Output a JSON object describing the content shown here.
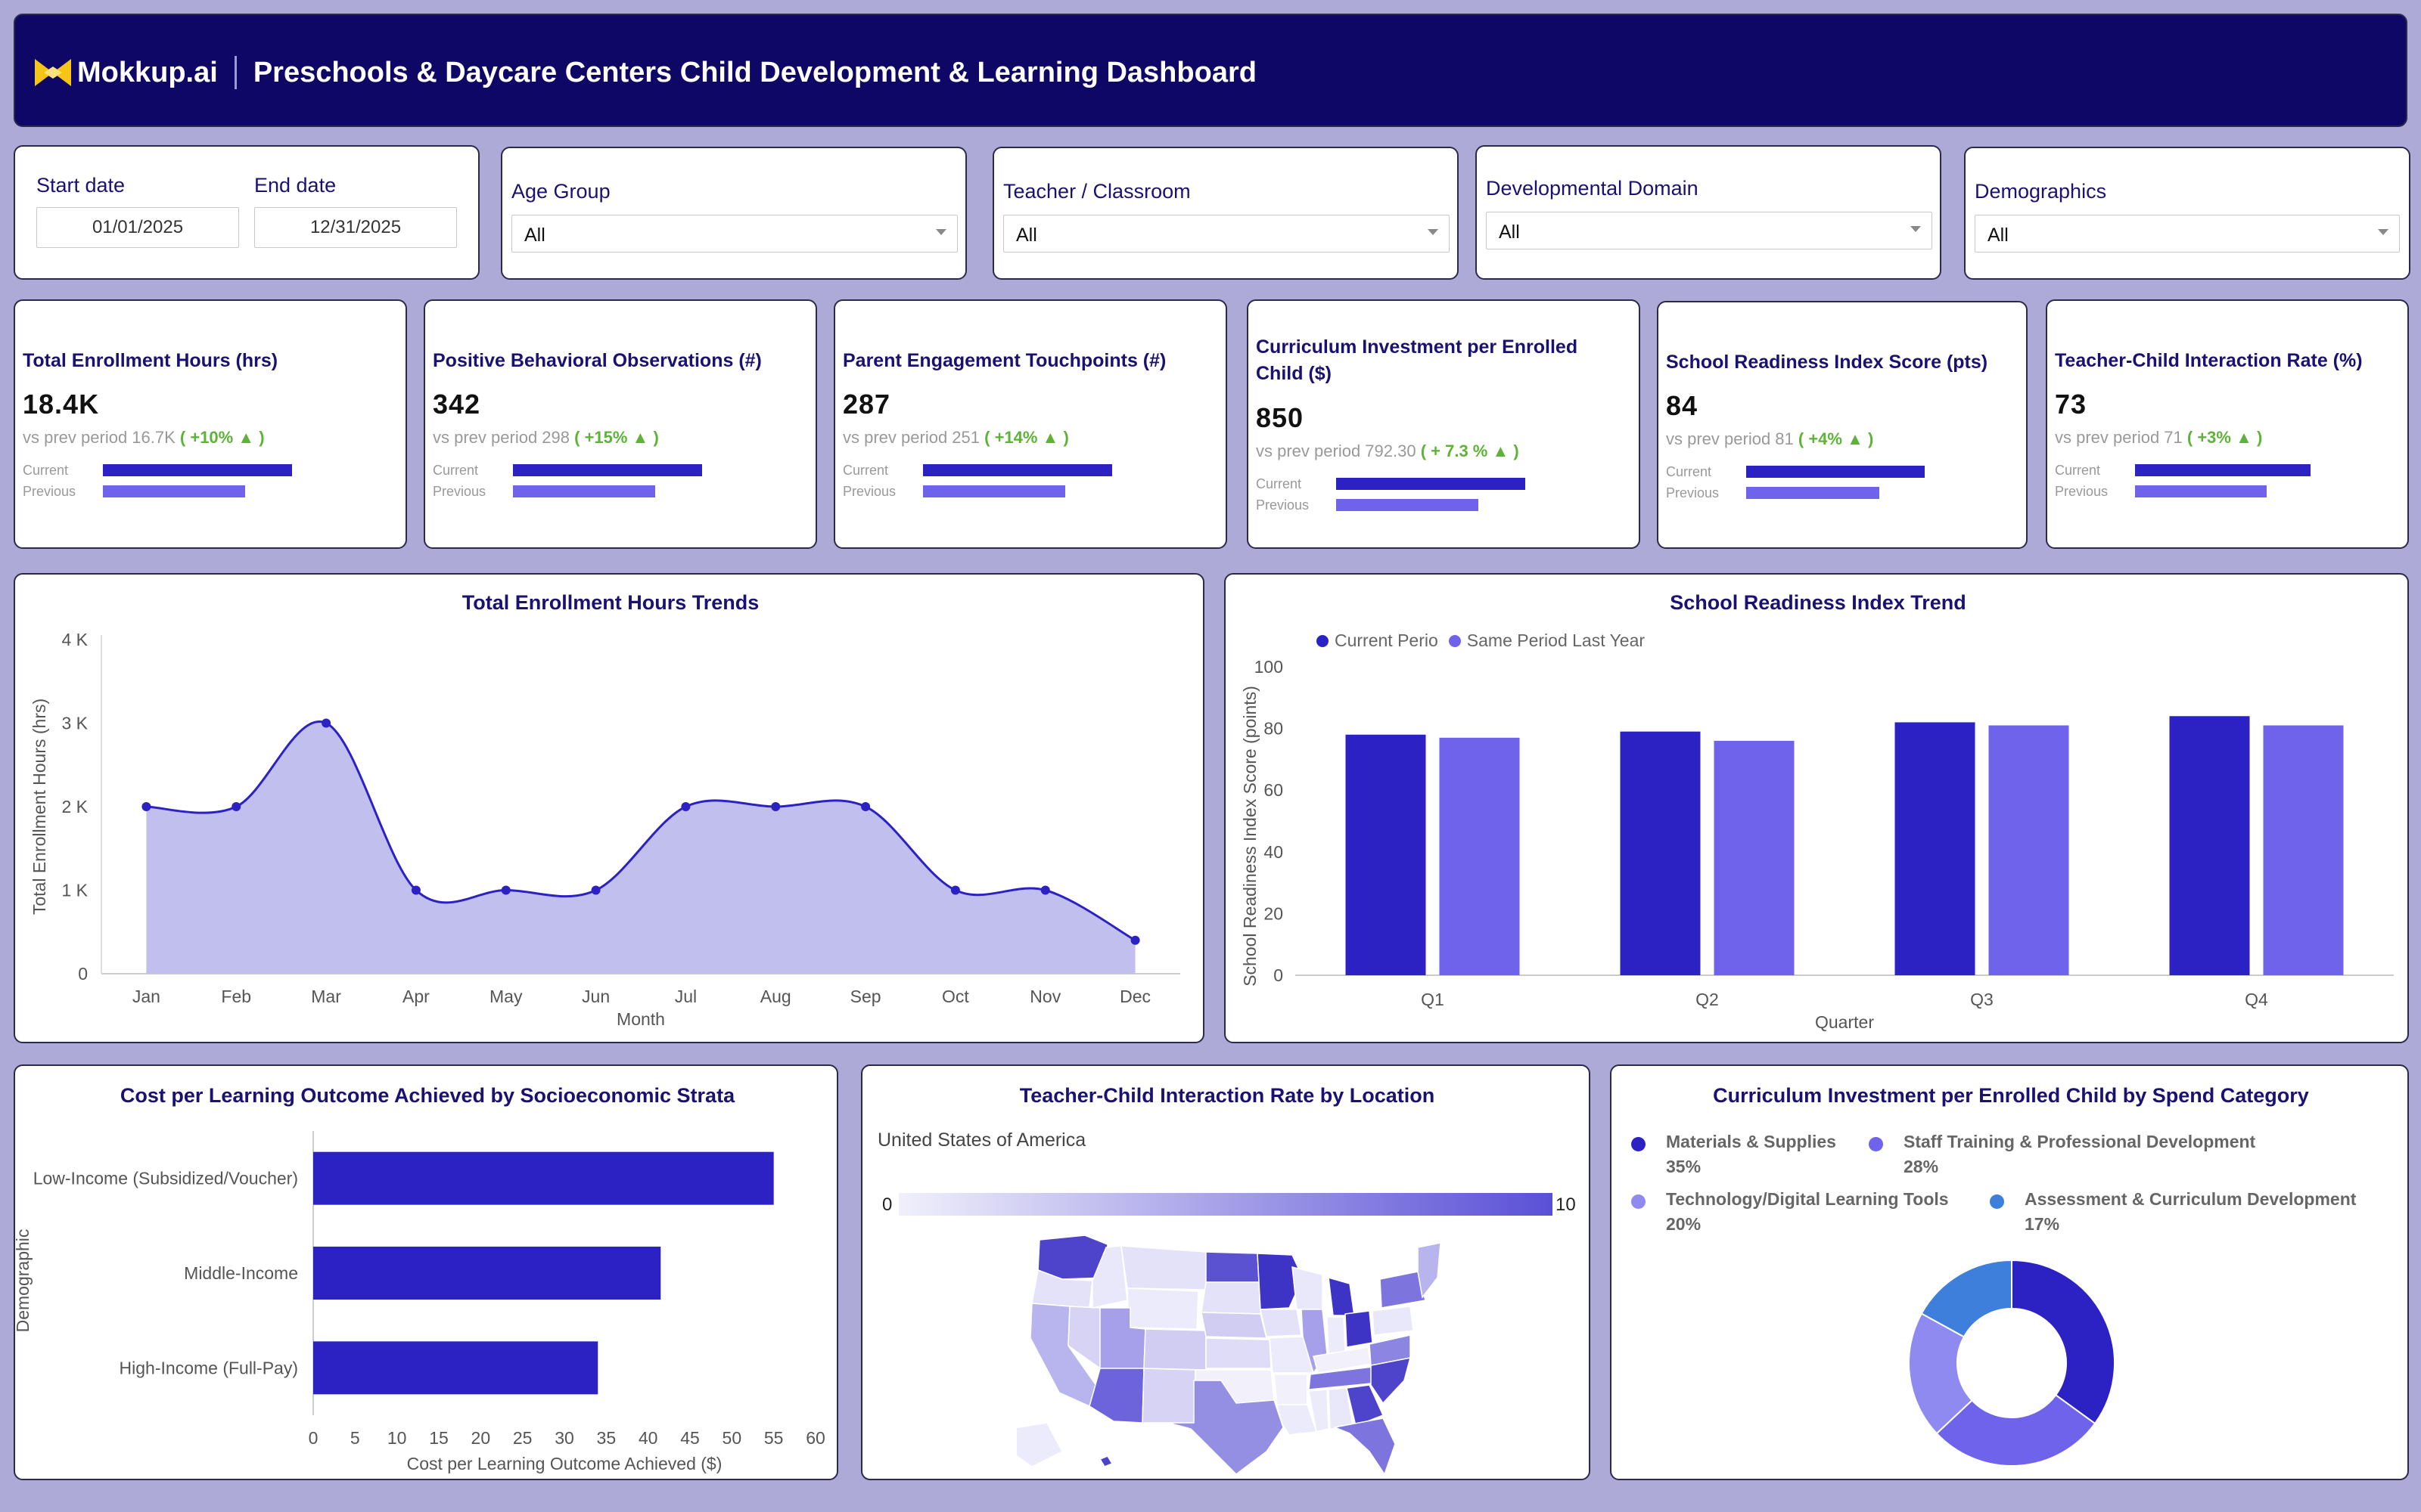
{
  "header": {
    "logo_text": "Mokkup.ai",
    "title": "Preschools & Daycare Centers Child Development & Learning Dashboard"
  },
  "filters": {
    "start_date_label": "Start date",
    "start_date_value": "01/01/2025",
    "end_date_label": "End date",
    "end_date_value": "12/31/2025",
    "age_group_label": "Age Group",
    "age_group_value": "All",
    "teacher_label": "Teacher / Classroom",
    "teacher_value": "All",
    "domain_label": "Developmental Domain",
    "domain_value": "All",
    "demographics_label": "Demographics",
    "demographics_value": "All"
  },
  "kpis": [
    {
      "title": "Total Enrollment Hours (hrs)",
      "value": "18.4K",
      "prev_text": "vs prev period 16.7K",
      "change": "( +10% ▲ )",
      "current_label": "Current",
      "previous_label": "Previous",
      "current_ratio": 1.0,
      "previous_ratio": 0.75
    },
    {
      "title": "Positive Behavioral Observations (#)",
      "value": "342",
      "prev_text": "vs prev period 298",
      "change": "( +15% ▲ )",
      "current_label": "Current",
      "previous_label": "Previous",
      "current_ratio": 1.0,
      "previous_ratio": 0.75
    },
    {
      "title": "Parent Engagement Touchpoints (#)",
      "value": "287",
      "prev_text": "vs prev period 251",
      "change": "( +14% ▲ )",
      "current_label": "Current",
      "previous_label": "Previous",
      "current_ratio": 1.0,
      "previous_ratio": 0.75
    },
    {
      "title": "Curriculum Investment per Enrolled Child ($)",
      "value": "850",
      "prev_text": "vs prev period 792.30",
      "change": "( + 7.3 % ▲ )",
      "current_label": "Current",
      "previous_label": "Previous",
      "current_ratio": 1.0,
      "previous_ratio": 0.75
    },
    {
      "title": "School Readiness Index Score (pts)",
      "value": "84",
      "prev_text": "vs prev period 81",
      "change": "( +4% ▲ )",
      "current_label": "Current",
      "previous_label": "Previous",
      "current_ratio": 1.0,
      "previous_ratio": 0.75
    },
    {
      "title": "Teacher-Child Interaction Rate (%)",
      "value": "73",
      "prev_text": "vs prev period 71",
      "change": "( +3% ▲ )",
      "current_label": "Current",
      "previous_label": "Previous",
      "current_ratio": 1.0,
      "previous_ratio": 0.75
    }
  ],
  "colors": {
    "dark": "#2c22c4",
    "mid": "#6e63ea",
    "light": "#8e8af0",
    "blue": "#3e7fdc",
    "area": "#c1bfee"
  },
  "map": {
    "title": "Teacher-Child Interaction Rate by Location",
    "region": "United States of America",
    "scale_min": "0",
    "scale_max": "10"
  },
  "chart_data": [
    {
      "type": "area",
      "title": "Total Enrollment Hours Trends",
      "xlabel": "Month",
      "ylabel": "Total Enrollment Hours (hrs)",
      "categories": [
        "Jan",
        "Feb",
        "Mar",
        "Apr",
        "May",
        "Jun",
        "Jul",
        "Aug",
        "Sep",
        "Oct",
        "Nov",
        "Dec"
      ],
      "values": [
        2000,
        2000,
        3000,
        1000,
        1000,
        1000,
        2000,
        2000,
        2000,
        1000,
        1000,
        400
      ],
      "ylim": [
        0,
        4000
      ],
      "yticks": [
        "0",
        "1 K",
        "2 K",
        "3 K",
        "4 K"
      ]
    },
    {
      "type": "bar",
      "title": "School Readiness Index Trend",
      "xlabel": "Quarter",
      "ylabel": "School Readiness Index Score (points)",
      "categories": [
        "Q1",
        "Q2",
        "Q3",
        "Q4"
      ],
      "series": [
        {
          "name": "Current Perio",
          "values": [
            78,
            79,
            82,
            84
          ]
        },
        {
          "name": "Same Period Last Year",
          "values": [
            77,
            76,
            81,
            81
          ]
        }
      ],
      "ylim": [
        0,
        100
      ],
      "yticks": [
        "0",
        "20",
        "40",
        "60",
        "80",
        "100"
      ]
    },
    {
      "type": "bar",
      "orientation": "horizontal",
      "title": "Cost per Learning Outcome Achieved by Socioeconomic Strata",
      "xlabel": "Cost per Learning Outcome Achieved ($)",
      "ylabel": "Demographic",
      "categories": [
        "Low-Income (Subsidized/Voucher)",
        "Middle-Income",
        "High-Income (Full-Pay)"
      ],
      "values": [
        55,
        41.5,
        34
      ],
      "xlim": [
        0,
        60
      ],
      "xticks": [
        "0",
        "5",
        "10",
        "15",
        "20",
        "25",
        "30",
        "35",
        "40",
        "45",
        "50",
        "55",
        "60"
      ]
    },
    {
      "type": "pie",
      "title": "Curriculum Investment per Enrolled Child by Spend Category",
      "labels": [
        "Materials & Supplies",
        "Staff Training & Professional Development",
        "Technology/Digital Learning Tools",
        "Assessment & Curriculum Development"
      ],
      "values": [
        35,
        28,
        20,
        17
      ],
      "value_labels": [
        "35%",
        "28%",
        "20%",
        "17%"
      ]
    }
  ]
}
